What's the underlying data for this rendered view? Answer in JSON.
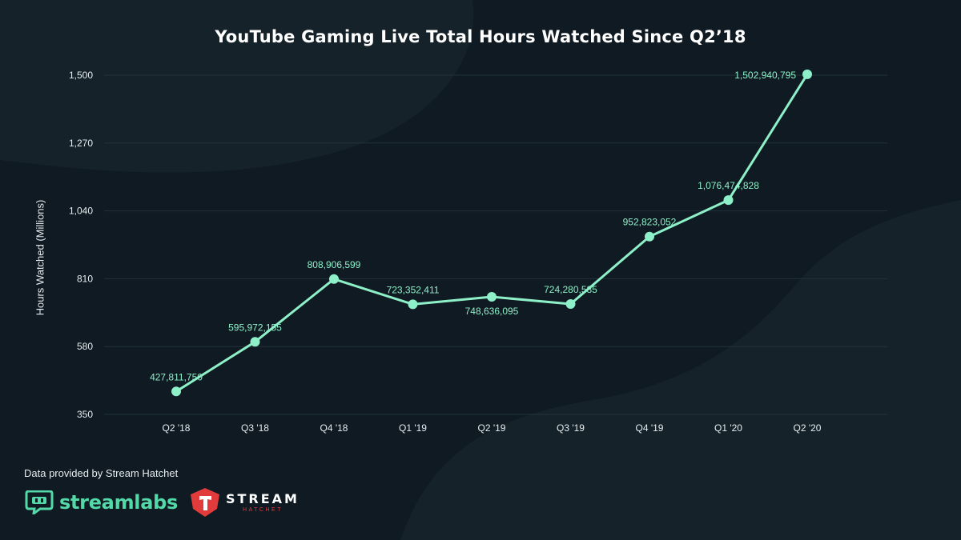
{
  "chart_data": {
    "type": "line",
    "title": "YouTube Gaming Live Total Hours Watched Since Q2’18",
    "xlabel": "",
    "ylabel": "Hours Watched (Millions)",
    "categories": [
      "Q2 '18",
      "Q3 '18",
      "Q4 '18",
      "Q1 '19",
      "Q2 '19",
      "Q3 '19",
      "Q4 '19",
      "Q1 '20",
      "Q2 '20"
    ],
    "y_ticks": [
      "350",
      "580",
      "810",
      "1,040",
      "1,270",
      "1,500"
    ],
    "ylim": [
      350,
      1500
    ],
    "grid": true,
    "series": [
      {
        "values": [
          427.81175,
          595.972155,
          808.906599,
          723.352411,
          748.636095,
          724.280585,
          952.823052,
          1076.474828,
          1502.940795
        ],
        "labels": [
          "427,811,750",
          "595,972,155",
          "808,906,599",
          "723,352,411",
          "748,636,095",
          "724,280,585",
          "952,823,052",
          "1,076,474,828",
          "1,502,940,795"
        ],
        "label_position": [
          "above",
          "above",
          "above",
          "above",
          "below",
          "above",
          "above",
          "above",
          "left"
        ],
        "color": "#8ef0c8"
      }
    ]
  },
  "footer": {
    "source_note": "Data provided by Stream Hatchet",
    "streamlabs_label": "streamlabs",
    "hatchet_label": "STREAM",
    "hatchet_sublabel": "HATCHET"
  },
  "colors": {
    "background": "#0f1a22",
    "line": "#8ef0c8",
    "label": "#8ef0c8",
    "grid": "#22313a",
    "brand_green": "#53d9a8",
    "brand_red": "#e23b3b"
  }
}
